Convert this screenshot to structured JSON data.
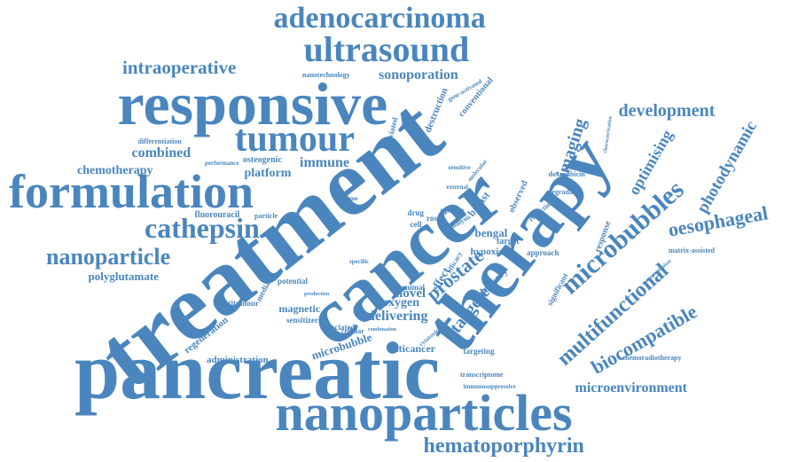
{
  "colors": {
    "word": "#4a86bd",
    "background": "#ffffff"
  },
  "words": [
    "pancreatic",
    "treatment",
    "cancer",
    "therapy",
    "responsive",
    "nanoparticles",
    "formulation",
    "tumour",
    "ultrasound",
    "adenocarcinoma",
    "cathepsin",
    "nanoparticle",
    "hematoporphyrin",
    "microbubbles",
    "multifunctional",
    "biocompatible",
    "oesophageal",
    "intraoperative",
    "development",
    "prostate",
    "targeted",
    "imaging",
    "optimising",
    "photodynamic",
    "microenvironment",
    "sonoporation",
    "immune",
    "combined",
    "chemotherapy",
    "platform",
    "polyglutamate",
    "delivering",
    "oxygen",
    "novel",
    "bengal",
    "hypoxia",
    "microbubble",
    "magnetic",
    "sensitizer",
    "anticancer",
    "regeneration",
    "administration",
    "antitumour",
    "fluorouracil",
    "particle",
    "osteogenic",
    "differentiation",
    "nanotechnology",
    "performance",
    "doxorubicin",
    "target",
    "delivery",
    "effect",
    "uptake",
    "rose",
    "breast",
    "observed",
    "reduction",
    "degradable",
    "response",
    "significant",
    "approach",
    "associated",
    "potential",
    "mediated",
    "cellular",
    "animal",
    "targeting",
    "transcriptome",
    "immunosuppressive",
    "chemoradiotherapy",
    "matrix-assisted",
    "nanoparticulate",
    "characterization",
    "destruction",
    "conventional",
    "alleviated",
    "gene-activated",
    "efficacy",
    "drug",
    "cell",
    "molecular",
    "analysis",
    "cytotoxicity",
    "combination",
    "sensitive",
    "external",
    "volume",
    "production",
    "specific"
  ]
}
